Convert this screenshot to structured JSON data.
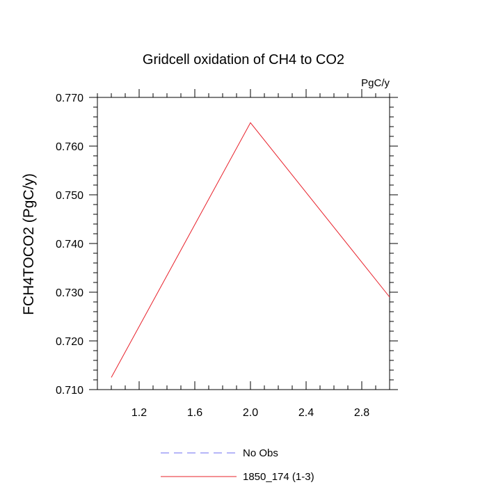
{
  "chart_data": {
    "type": "line",
    "title": "Gridcell oxidation of CH4 to CO2",
    "units_label": "PgC/y",
    "ylabel": "FCH4TOCO2  (PgC/y)",
    "xlabel": "",
    "xlim": [
      0.9,
      3.0
    ],
    "ylim": [
      0.71,
      0.77
    ],
    "x_ticks": [
      1.2,
      1.6,
      2.0,
      2.4,
      2.8
    ],
    "x_tick_labels": [
      "1.2",
      "1.6",
      "2.0",
      "2.4",
      "2.8"
    ],
    "y_ticks": [
      0.71,
      0.72,
      0.73,
      0.74,
      0.75,
      0.76,
      0.77
    ],
    "y_tick_labels": [
      "0.710",
      "0.720",
      "0.730",
      "0.740",
      "0.750",
      "0.760",
      "0.770"
    ],
    "series": [
      {
        "name": "No Obs",
        "color": "#6e6ef0",
        "dash": "dashed",
        "x": [],
        "y": []
      },
      {
        "name": "1850_174 (1-3)",
        "color": "#e8202a",
        "dash": "solid",
        "x": [
          1.0,
          2.0,
          3.0
        ],
        "y": [
          0.7125,
          0.7648,
          0.729
        ]
      }
    ],
    "legend": {
      "placement": "bottom-center"
    }
  }
}
